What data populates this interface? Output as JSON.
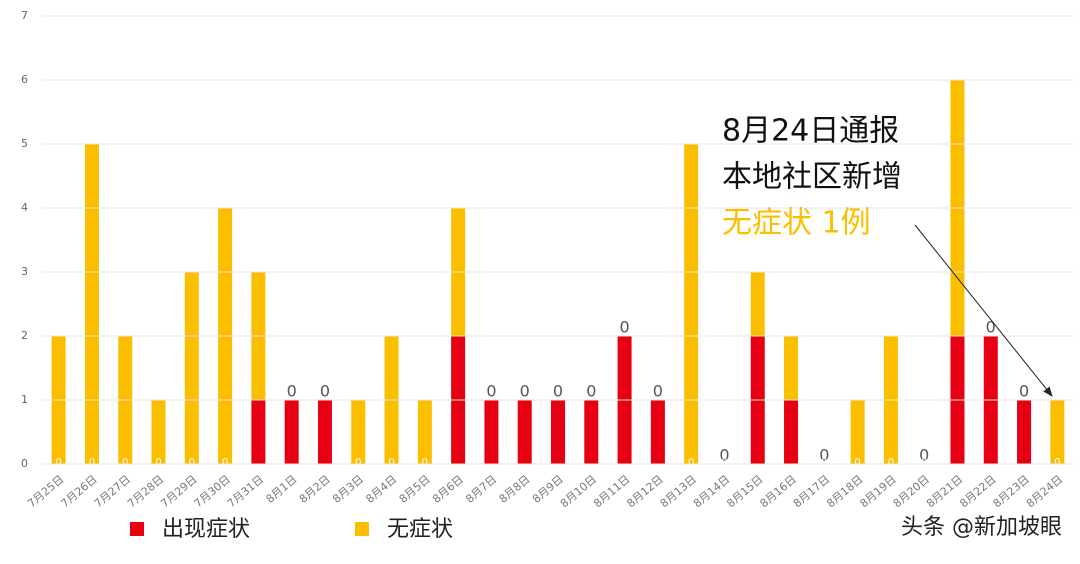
{
  "chart_data": {
    "type": "stacked_bar",
    "categories": [
      "7月25日",
      "7月26日",
      "7月27日",
      "7月28日",
      "7月29日",
      "7月30日",
      "7月31日",
      "8月1日",
      "8月2日",
      "8月3日",
      "8月4日",
      "8月5日",
      "8月6日",
      "8月7日",
      "8月8日",
      "8月9日",
      "8月10日",
      "8月11日",
      "8月12日",
      "8月13日",
      "8月14日",
      "8月15日",
      "8月16日",
      "8月17日",
      "8月18日",
      "8月19日",
      "8月20日",
      "8月21日",
      "8月22日",
      "8月23日",
      "8月24日"
    ],
    "series": [
      {
        "name": "出现症状",
        "color": "#e60012",
        "values": [
          0,
          0,
          0,
          0,
          0,
          0,
          1,
          1,
          1,
          0,
          0,
          0,
          2,
          1,
          1,
          1,
          1,
          2,
          1,
          0,
          0,
          2,
          1,
          0,
          0,
          0,
          0,
          2,
          2,
          1,
          0
        ]
      },
      {
        "name": "无症状",
        "color": "#fbbf00",
        "values": [
          2,
          5,
          2,
          1,
          3,
          4,
          2,
          0,
          0,
          1,
          2,
          1,
          2,
          0,
          0,
          0,
          0,
          0,
          0,
          5,
          0,
          1,
          1,
          0,
          1,
          2,
          0,
          4,
          0,
          0,
          1
        ]
      }
    ],
    "ylim": [
      0,
      7
    ],
    "yticks": [
      0,
      1,
      2,
      3,
      4,
      5,
      6,
      7
    ],
    "grid": true,
    "legend": "bottom",
    "annotation": [
      "8月24日通报",
      "本地社区新增",
      "无症状 1例"
    ],
    "footer": "头条 @新加坡眼"
  }
}
